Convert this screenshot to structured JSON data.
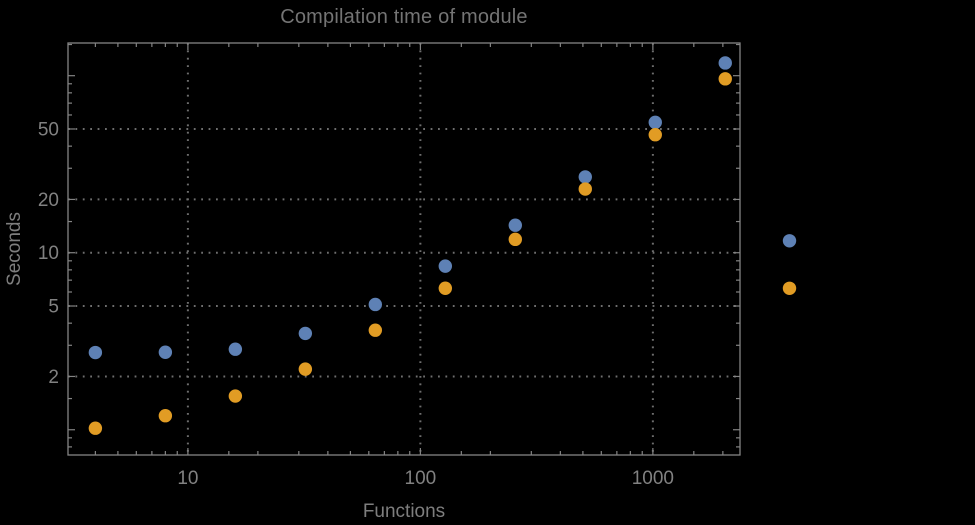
{
  "colors": {
    "background": "#000000",
    "frame": "#848484",
    "grid": "#6e6e6e",
    "tick_label_text": "#818181",
    "title_text": "#747474",
    "axis_label_text": "#7e7e7e",
    "series_blue": "#5e81b5",
    "series_orange": "#e19c24"
  },
  "chart_data": {
    "type": "scatter",
    "title": "Compilation time of module",
    "xlabel": "Functions",
    "ylabel": "Seconds",
    "x_scale": "log",
    "y_scale": "log",
    "x_range": [
      3.05,
      2370
    ],
    "y_range": [
      0.72,
      153
    ],
    "grid": "dotted gridlines at labeled ticks only",
    "legend_position": "right of frame, color markers only (no visible text)",
    "x": [
      4,
      8,
      16,
      32,
      64,
      128,
      256,
      512,
      1024,
      2048
    ],
    "series": [
      {
        "name": "series-blue",
        "color": "#5e81b5",
        "values": [
          2.73,
          2.74,
          2.85,
          3.5,
          5.1,
          8.4,
          14.3,
          26.8,
          54.5,
          118
        ]
      },
      {
        "name": "series-orange",
        "color": "#e19c24",
        "values": [
          1.02,
          1.2,
          1.55,
          2.2,
          3.65,
          6.3,
          11.9,
          22.9,
          46.4,
          96
        ]
      }
    ],
    "x_ticks": {
      "labeled": [
        10,
        100,
        1000
      ],
      "labels": [
        "10",
        "100",
        "1000"
      ],
      "unlabeled_major": [],
      "minor": [
        4,
        5,
        6,
        7,
        8,
        9,
        15,
        20,
        30,
        40,
        50,
        60,
        70,
        80,
        90,
        150,
        200,
        300,
        400,
        500,
        600,
        700,
        800,
        900,
        1500,
        2000
      ]
    },
    "y_ticks": {
      "labeled": [
        2,
        5,
        10,
        20,
        50
      ],
      "labels": [
        "2",
        "5",
        "10",
        "20",
        "50"
      ],
      "unlabeled_major": [
        1,
        100
      ],
      "minor": [
        0.8,
        0.9,
        1.5,
        3,
        4,
        6,
        7,
        8,
        9,
        15,
        30,
        40,
        60,
        70,
        80,
        90,
        150
      ]
    }
  }
}
